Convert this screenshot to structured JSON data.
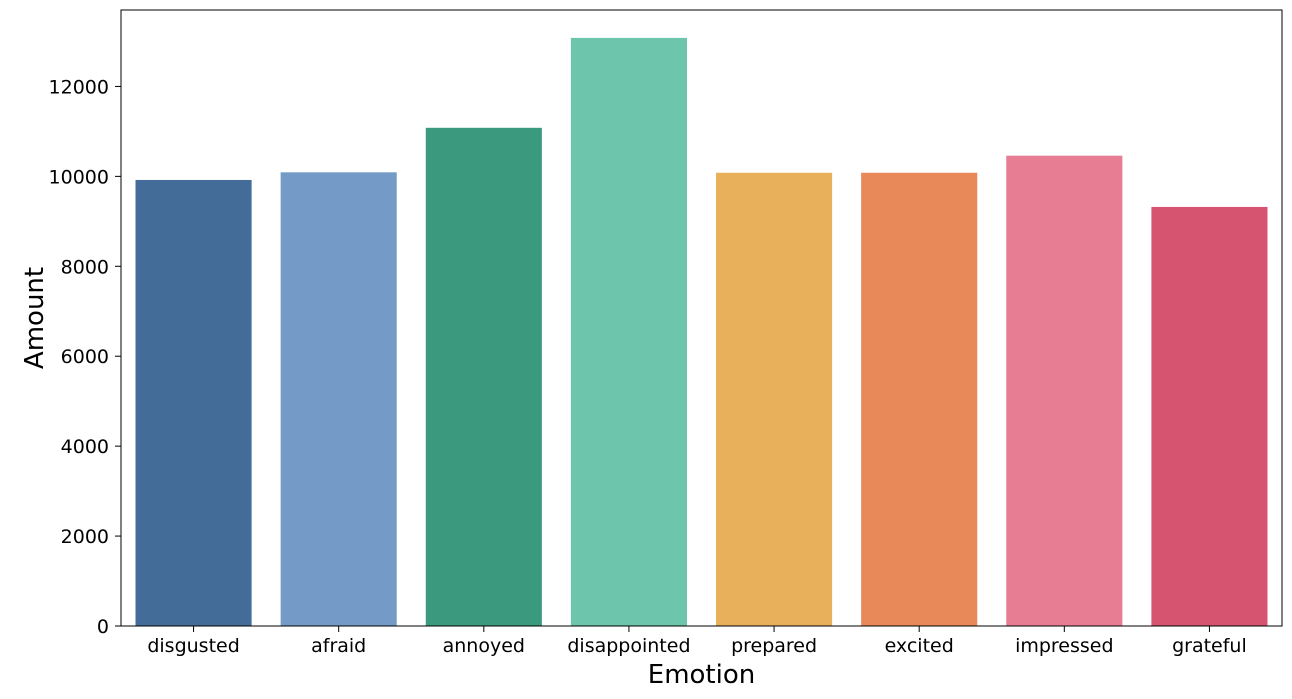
{
  "chart_data": {
    "type": "bar",
    "title": "",
    "xlabel": "Emotion",
    "ylabel": "Amount",
    "categories": [
      "disgusted",
      "afraid",
      "annoyed",
      "disappointed",
      "prepared",
      "excited",
      "impressed",
      "grateful"
    ],
    "values": [
      9920,
      10090,
      11080,
      13080,
      10080,
      10080,
      10460,
      9320
    ],
    "colors": [
      "#446c98",
      "#749bc8",
      "#3b9a7e",
      "#6dc5ab",
      "#e8b05a",
      "#e8895a",
      "#e77d93",
      "#d6546f"
    ],
    "ylim": [
      0,
      13700
    ],
    "yticks": [
      0,
      2000,
      4000,
      6000,
      8000,
      10000,
      12000
    ],
    "ytick_labels": [
      "0",
      "2000",
      "4000",
      "6000",
      "8000",
      "10000",
      "12000"
    ],
    "grid": false,
    "legend": false
  }
}
